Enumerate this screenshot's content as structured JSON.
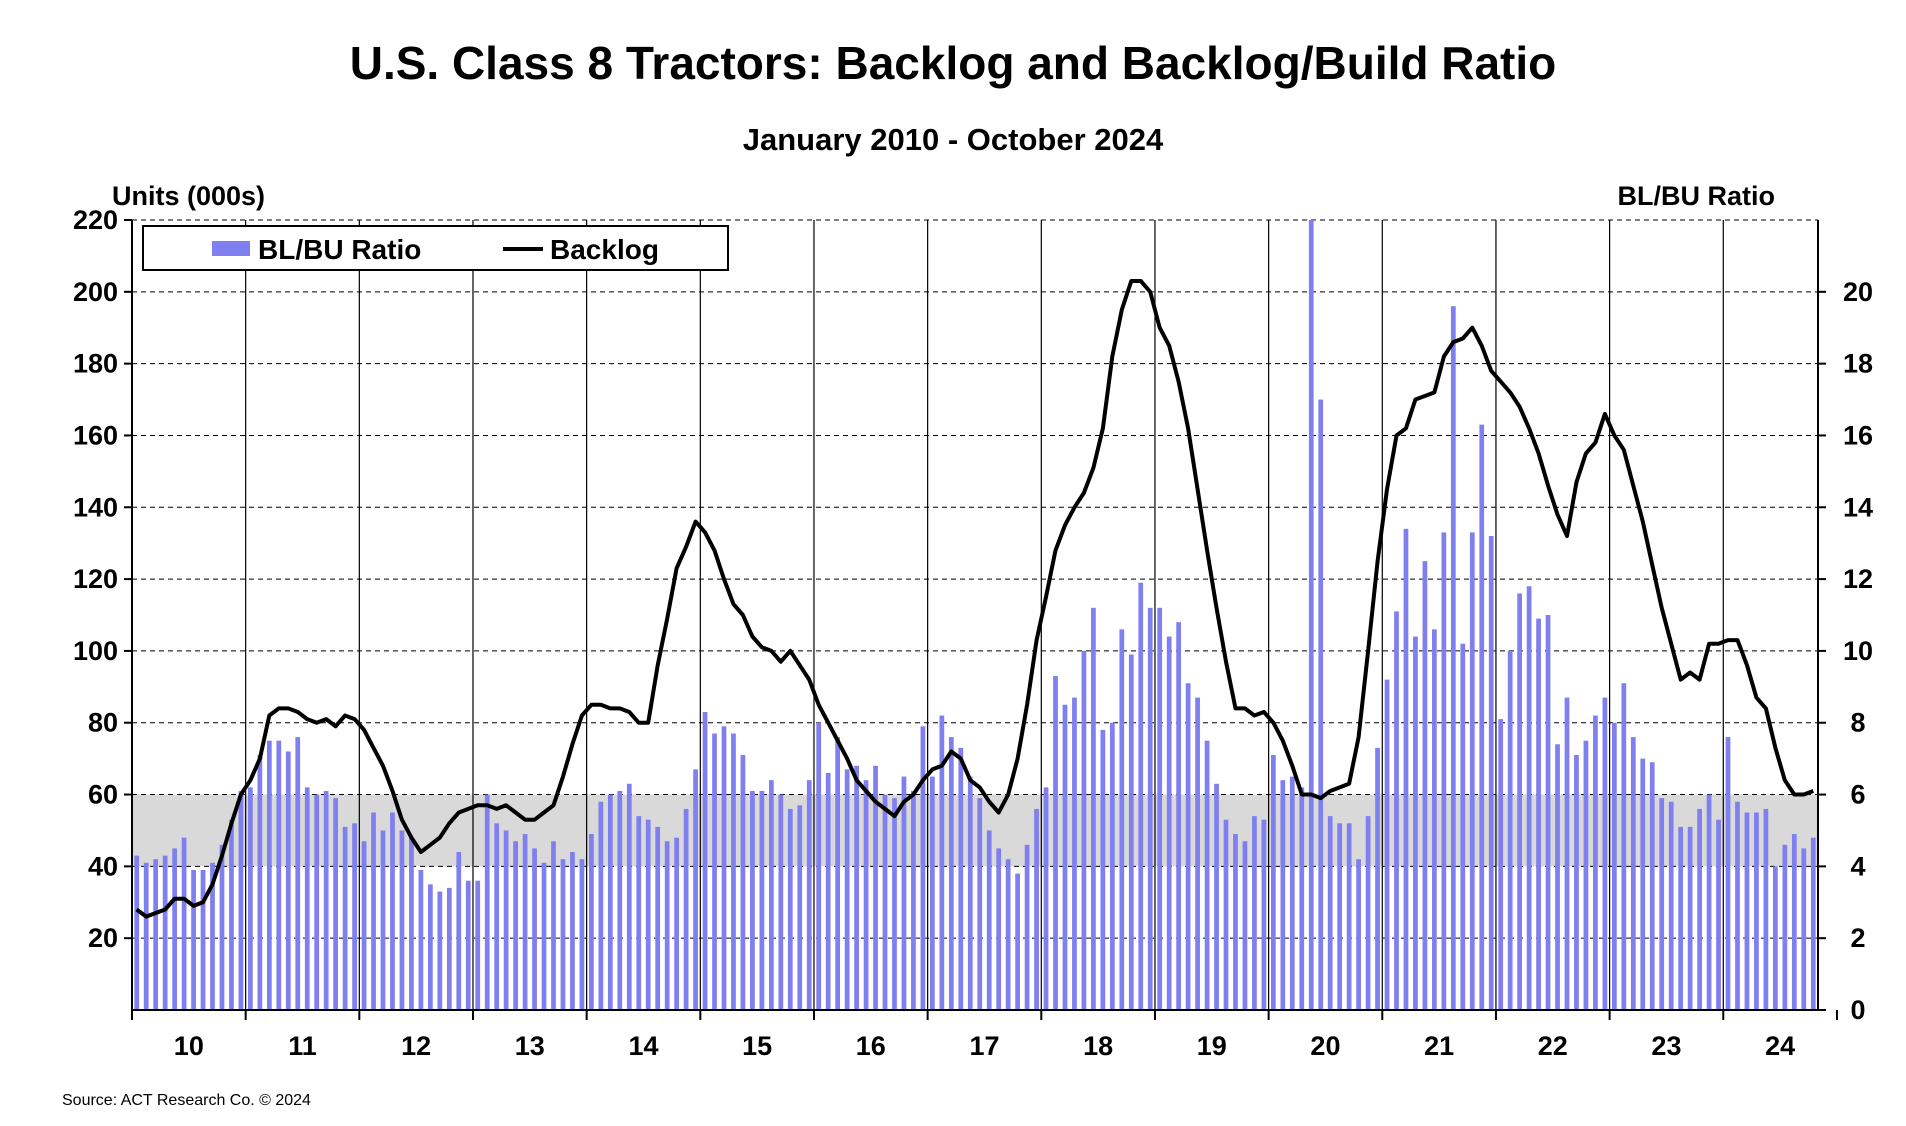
{
  "chart_data": {
    "type": "bar+line",
    "title": "U.S. Class 8 Tractors: Backlog and Backlog/Build Ratio",
    "subtitle": "January 2010 - October 2024",
    "y_left_label": "Units (000s)",
    "y_right_label": "BL/BU Ratio",
    "y_left_range": [
      0,
      220
    ],
    "y_right_range": [
      0,
      22
    ],
    "y_left_ticks": [
      "20",
      "40",
      "60",
      "80",
      "100",
      "120",
      "140",
      "160",
      "180",
      "200",
      "220"
    ],
    "y_right_ticks": [
      "0",
      "2",
      "4",
      "6",
      "8",
      "10",
      "12",
      "14",
      "16",
      "18",
      "20"
    ],
    "x_labels": [
      "10",
      "11",
      "12",
      "13",
      "14",
      "15",
      "16",
      "17",
      "18",
      "19",
      "20",
      "21",
      "22",
      "23",
      "24"
    ],
    "shaded_band_ratio": [
      4,
      6
    ],
    "legend": {
      "position": "top-left",
      "entries": [
        "BL/BU Ratio",
        "Backlog"
      ]
    },
    "series": [
      {
        "name": "BL/BU Ratio",
        "type": "bar",
        "axis": "right",
        "color": "#7f7fef",
        "start": "2010-01",
        "frequency": "monthly",
        "values": [
          4.3,
          4.1,
          4.2,
          4.3,
          4.5,
          4.8,
          3.9,
          3.9,
          4.1,
          4.6,
          5.3,
          6.1,
          6.2,
          7.1,
          7.5,
          7.5,
          7.2,
          7.6,
          6.2,
          6.0,
          6.1,
          5.9,
          5.1,
          5.2,
          4.7,
          5.5,
          5.0,
          5.5,
          5.0,
          4.8,
          3.9,
          3.5,
          3.3,
          3.4,
          4.4,
          3.6,
          3.6,
          6.0,
          5.2,
          5.0,
          4.7,
          4.9,
          4.5,
          4.1,
          4.7,
          4.2,
          4.4,
          4.2,
          4.9,
          5.8,
          6.0,
          6.1,
          6.3,
          5.4,
          5.3,
          5.1,
          4.7,
          4.8,
          5.6,
          6.7,
          8.3,
          7.7,
          7.9,
          7.7,
          7.1,
          6.1,
          6.1,
          6.4,
          6.0,
          5.6,
          5.7,
          6.4,
          8.0,
          6.6,
          7.6,
          6.7,
          6.8,
          6.4,
          6.8,
          6.0,
          5.9,
          6.5,
          6.1,
          7.9,
          6.5,
          8.2,
          7.6,
          7.3,
          6.5,
          5.9,
          5.0,
          4.5,
          4.2,
          3.8,
          4.6,
          5.6,
          6.2,
          9.3,
          8.5,
          8.7,
          10.0,
          11.2,
          7.8,
          8.0,
          10.6,
          9.9,
          11.9,
          11.2,
          11.2,
          10.4,
          10.8,
          9.1,
          8.7,
          7.5,
          6.3,
          5.3,
          4.9,
          4.7,
          5.4,
          5.3,
          7.1,
          6.4,
          6.5,
          6.2,
          22.0,
          17.0,
          5.4,
          5.2,
          5.2,
          4.2,
          5.4,
          7.3,
          9.2,
          11.1,
          13.4,
          10.4,
          12.5,
          10.6,
          13.3,
          19.6,
          10.2,
          13.3,
          16.3,
          13.2,
          8.1,
          10.0,
          11.6,
          11.8,
          10.9,
          11.0,
          7.4,
          8.7,
          7.1,
          7.5,
          8.2,
          8.7,
          8.0,
          9.1,
          7.6,
          7.0,
          6.9,
          5.9,
          5.8,
          5.1,
          5.1,
          5.6,
          6.0,
          5.3,
          7.6,
          5.8,
          5.5,
          5.5,
          5.6,
          4.0,
          4.6,
          4.9,
          4.5,
          4.8
        ]
      },
      {
        "name": "Backlog",
        "type": "line",
        "axis": "left",
        "color": "#000000",
        "start": "2010-01",
        "frequency": "monthly",
        "values": [
          28,
          26,
          27,
          28,
          31,
          31,
          29,
          30,
          35,
          43,
          52,
          60,
          64,
          70,
          82,
          84,
          84,
          83,
          81,
          80,
          81,
          79,
          82,
          81,
          78,
          73,
          68,
          61,
          53,
          48,
          44,
          46,
          48,
          52,
          55,
          56,
          57,
          57,
          56,
          57,
          55,
          53,
          53,
          55,
          57,
          65,
          74,
          82,
          85,
          85,
          84,
          84,
          83,
          80,
          80,
          96,
          109,
          123,
          129,
          136,
          133,
          128,
          120,
          113,
          110,
          104,
          101,
          100,
          97,
          100,
          96,
          92,
          85,
          80,
          75,
          70,
          64,
          61,
          58,
          56,
          54,
          58,
          60,
          64,
          67,
          68,
          72,
          70,
          64,
          62,
          58,
          55,
          60,
          70,
          85,
          103,
          115,
          128,
          135,
          140,
          144,
          151,
          162,
          182,
          195,
          203,
          203,
          200,
          190,
          185,
          175,
          162,
          145,
          128,
          112,
          97,
          84,
          84,
          82,
          83,
          80,
          75,
          68,
          60,
          60,
          59,
          61,
          62,
          63,
          76,
          100,
          125,
          145,
          160,
          162,
          170,
          171,
          172,
          182,
          186,
          187,
          190,
          185,
          178,
          175,
          172,
          168,
          162,
          155,
          146,
          138,
          132,
          147,
          155,
          158,
          166,
          160,
          156,
          146,
          136,
          124,
          112,
          102,
          92,
          94,
          92,
          102,
          102,
          103,
          103,
          96,
          87,
          84,
          73,
          64,
          60,
          60,
          61
        ]
      }
    ]
  }
}
